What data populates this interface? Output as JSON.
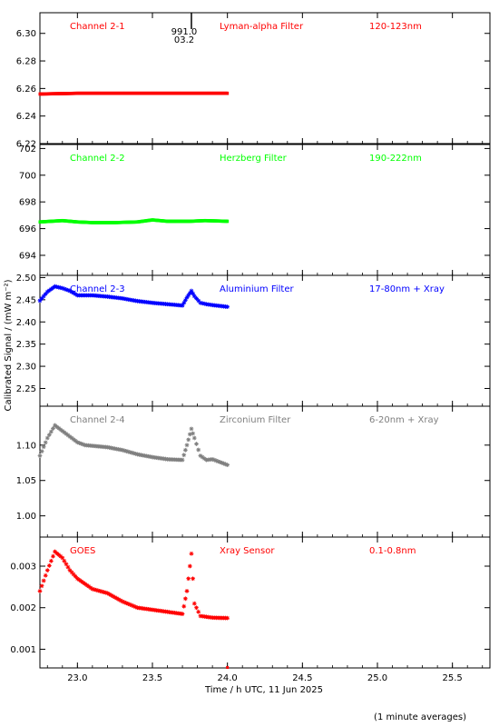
{
  "chart_data": {
    "type": "scatter",
    "xlabel": "Time / h UTC, 11 Jun 2025",
    "ylabel": "Calibrated Signal / (mW m⁻²)",
    "footnote": "(1 minute averages)",
    "xlim": [
      22.75,
      25.75
    ],
    "xticks": [
      "23.0",
      "23.5",
      "24.0",
      "24.5",
      "25.0",
      "25.5"
    ],
    "marker": {
      "x": 23.76,
      "labels": [
        "991.0",
        "03.2"
      ]
    },
    "panels": [
      {
        "channel": "Channel 2-1",
        "filter": "Lyman-alpha Filter",
        "band": "120-123nm",
        "color": "#ff0000",
        "ylim": [
          6.22,
          6.315
        ],
        "yticks": [
          "6.22",
          "6.24",
          "6.26",
          "6.28",
          "6.30"
        ],
        "x": [
          22.75,
          23.0,
          23.25,
          23.5,
          23.75,
          24.0
        ],
        "y": [
          6.256,
          6.2565,
          6.2565,
          6.2565,
          6.2565,
          6.2565
        ]
      },
      {
        "channel": "Channel 2-2",
        "filter": "Herzberg Filter",
        "band": "190-222nm",
        "color": "#00ff00",
        "ylim": [
          692.5,
          702.3
        ],
        "yticks": [
          "694",
          "696",
          "698",
          "700",
          "702"
        ],
        "x": [
          22.75,
          22.9,
          23.0,
          23.1,
          23.25,
          23.4,
          23.5,
          23.6,
          23.75,
          23.85,
          24.0
        ],
        "y": [
          696.5,
          696.6,
          696.5,
          696.45,
          696.45,
          696.5,
          696.65,
          696.55,
          696.55,
          696.6,
          696.55
        ]
      },
      {
        "channel": "Channel 2-3",
        "filter": "Aluminium Filter",
        "band": "17-80nm + Xray",
        "color": "#0000ff",
        "ylim": [
          2.21,
          2.505
        ],
        "yticks": [
          "2.25",
          "2.30",
          "2.35",
          "2.40",
          "2.45",
          "2.50"
        ],
        "x": [
          22.75,
          22.8,
          22.85,
          22.9,
          22.95,
          23.0,
          23.1,
          23.2,
          23.3,
          23.4,
          23.5,
          23.6,
          23.7,
          23.73,
          23.76,
          23.78,
          23.82,
          23.86,
          23.9,
          24.0
        ],
        "y": [
          2.448,
          2.468,
          2.48,
          2.476,
          2.47,
          2.46,
          2.46,
          2.457,
          2.453,
          2.447,
          2.443,
          2.44,
          2.437,
          2.455,
          2.47,
          2.458,
          2.443,
          2.44,
          2.438,
          2.434
        ]
      },
      {
        "channel": "Channel 2-4",
        "filter": "Zirconium Filter",
        "band": "6-20nm + Xray",
        "color": "#7f7f7f",
        "ylim": [
          0.97,
          1.155
        ],
        "yticks": [
          "1.00",
          "1.05",
          "1.10"
        ],
        "x": [
          22.75,
          22.8,
          22.85,
          22.9,
          22.95,
          23.0,
          23.05,
          23.1,
          23.2,
          23.3,
          23.4,
          23.5,
          23.6,
          23.7,
          23.73,
          23.76,
          23.78,
          23.82,
          23.86,
          23.9,
          24.0
        ],
        "y": [
          1.085,
          1.11,
          1.128,
          1.12,
          1.112,
          1.104,
          1.1,
          1.099,
          1.097,
          1.093,
          1.087,
          1.083,
          1.08,
          1.079,
          1.1,
          1.123,
          1.11,
          1.085,
          1.079,
          1.08,
          1.072
        ]
      },
      {
        "channel": "GOES",
        "filter": "Xray Sensor",
        "band": "0.1-0.8nm",
        "color": "#ff0000",
        "ylim": [
          0.00055,
          0.0037
        ],
        "yticks": [
          "0.001",
          "0.002",
          "0.003"
        ],
        "x": [
          22.75,
          22.8,
          22.85,
          22.9,
          22.95,
          23.0,
          23.1,
          23.2,
          23.3,
          23.4,
          23.5,
          23.6,
          23.7,
          23.73,
          23.76,
          23.78,
          23.82,
          23.86,
          23.9,
          24.0
        ],
        "y": [
          0.0024,
          0.0029,
          0.00335,
          0.0032,
          0.0029,
          0.0027,
          0.00245,
          0.00235,
          0.00215,
          0.002,
          0.00195,
          0.0019,
          0.00185,
          0.0024,
          0.0033,
          0.0021,
          0.0018,
          0.00178,
          0.00176,
          0.00175
        ]
      }
    ]
  }
}
